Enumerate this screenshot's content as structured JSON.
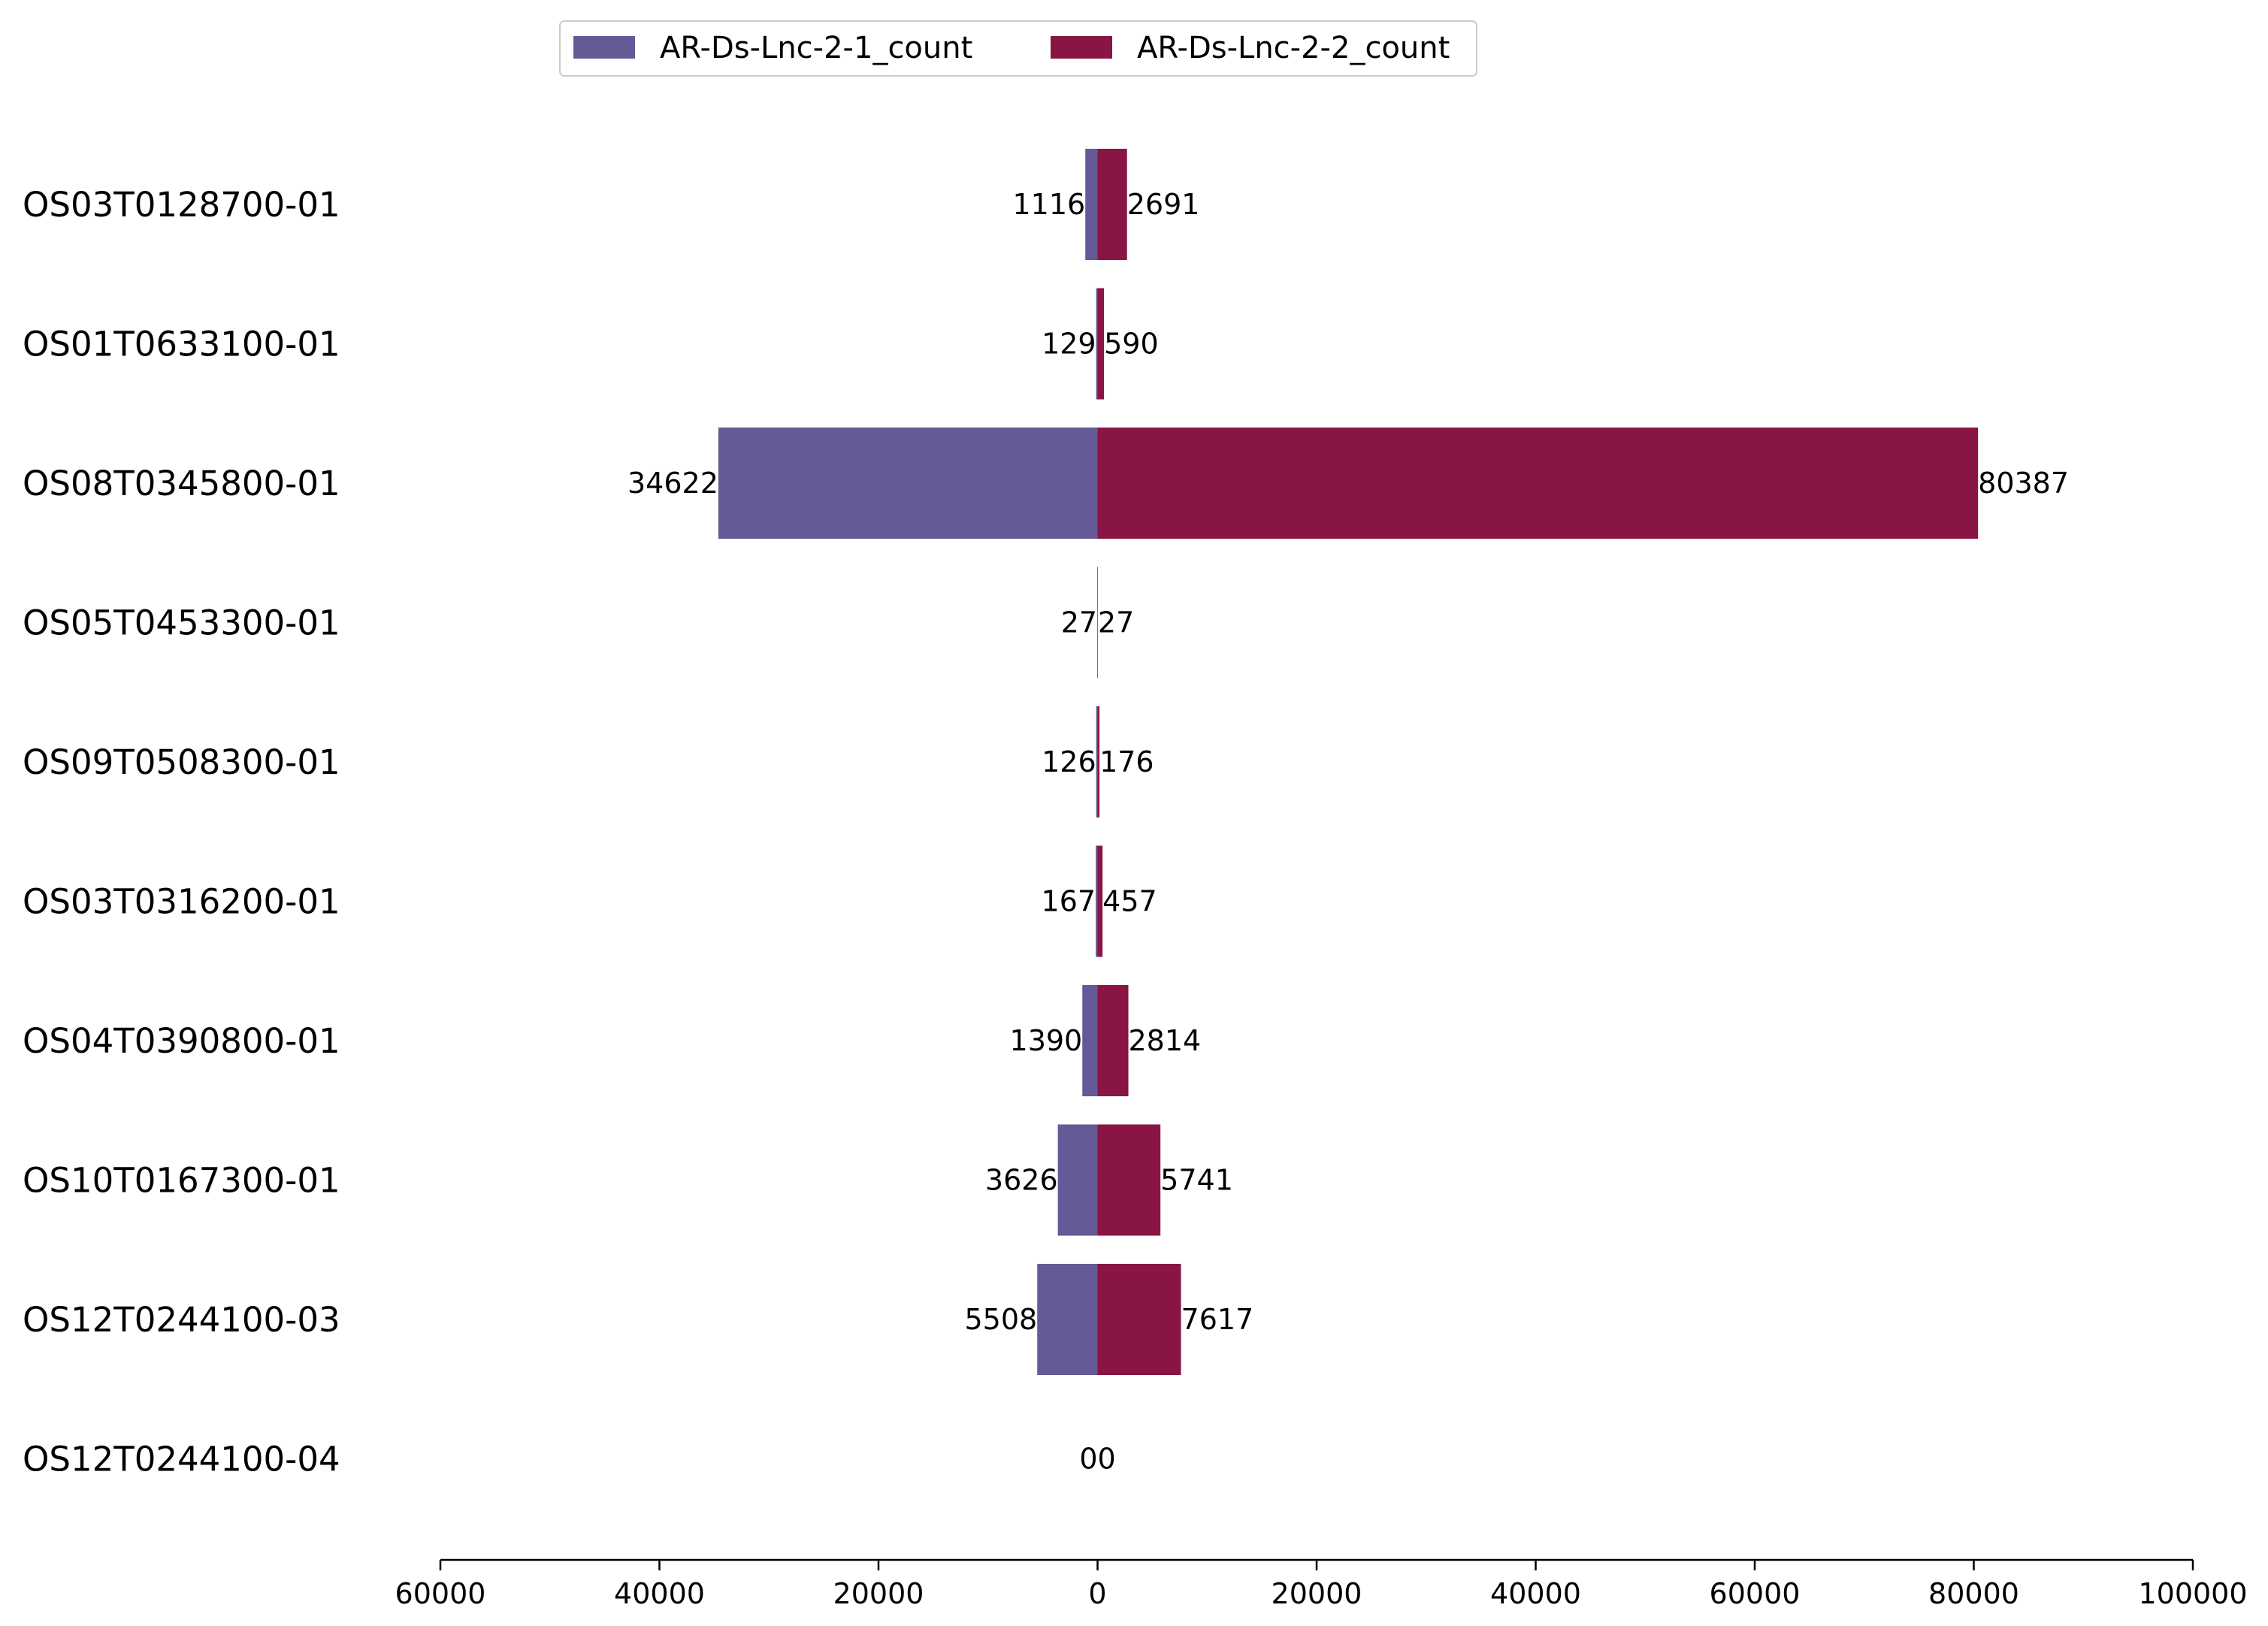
{
  "chart_data": {
    "type": "bar",
    "orientation": "horizontal",
    "layout": "diverging",
    "categories": [
      "OS03T0128700-01",
      "OS01T0633100-01",
      "OS08T0345800-01",
      "OS05T0453300-01",
      "OS09T0508300-01",
      "OS03T0316200-01",
      "OS04T0390800-01",
      "OS10T0167300-01",
      "OS12T0244100-03",
      "OS12T0244100-04"
    ],
    "series": [
      {
        "name": "AR-Ds-Lnc-2-1_count",
        "direction": "left",
        "color": "#655a96",
        "values": [
          1116,
          129,
          34622,
          27,
          126,
          167,
          1390,
          3626,
          5508,
          0
        ]
      },
      {
        "name": "AR-Ds-Lnc-2-2_count",
        "direction": "right",
        "color": "#891544",
        "values": [
          2691,
          590,
          80387,
          27,
          176,
          457,
          2814,
          5741,
          7617,
          0
        ]
      }
    ],
    "xlim": [
      -60000,
      100000
    ],
    "xticks": [
      -60000,
      -40000,
      -20000,
      0,
      20000,
      40000,
      60000,
      80000,
      100000
    ],
    "xtick_labels": [
      "60000",
      "40000",
      "20000",
      "0",
      "20000",
      "40000",
      "60000",
      "80000",
      "100000"
    ],
    "title": "",
    "xlabel": "",
    "ylabel": "",
    "legend_position": "top-center",
    "grid": false
  }
}
